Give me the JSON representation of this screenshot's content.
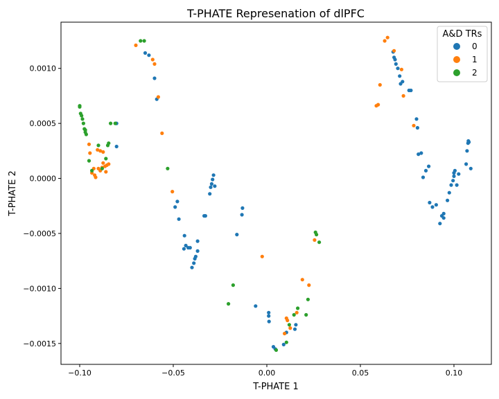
{
  "chart_data": {
    "type": "scatter",
    "title": "T-PHATE Represenation of dlPFC",
    "xlabel": "T-PHATE 1",
    "ylabel": "T-PHATE 2",
    "xlim": [
      -0.11,
      0.12
    ],
    "ylim": [
      -0.00169,
      0.00142
    ],
    "x_ticks": [
      -0.1,
      -0.05,
      0.0,
      0.05,
      0.1
    ],
    "x_tick_labels": [
      "−0.10",
      "−0.05",
      "0.00",
      "0.05",
      "0.10"
    ],
    "y_ticks": [
      -0.0015,
      -0.001,
      -0.0005,
      0.0,
      0.0005,
      0.001
    ],
    "y_tick_labels": [
      "−0.0015",
      "−0.0010",
      "−0.0005",
      "0.0000",
      "0.0005",
      "0.0010"
    ],
    "grid": false,
    "legend": {
      "title": "A&D TRs",
      "placement": "top-right"
    },
    "series": [
      {
        "name": "0",
        "color": "#1f77b4",
        "points": [
          [
            -0.0803,
            0.0005
          ],
          [
            -0.0803,
            0.00029
          ],
          [
            -0.065,
            0.00114
          ],
          [
            -0.063,
            0.00112
          ],
          [
            -0.06,
            0.00091
          ],
          [
            -0.0588,
            0.00072
          ],
          [
            -0.049,
            -0.00026
          ],
          [
            -0.0478,
            -0.00021
          ],
          [
            -0.047,
            -0.00037
          ],
          [
            -0.0443,
            -0.00064
          ],
          [
            -0.044,
            -0.00052
          ],
          [
            -0.0433,
            -0.00061
          ],
          [
            -0.042,
            -0.00063
          ],
          [
            -0.041,
            -0.00063
          ],
          [
            -0.04,
            -0.00081
          ],
          [
            -0.039,
            -0.00077
          ],
          [
            -0.0385,
            -0.00073
          ],
          [
            -0.038,
            -0.00071
          ],
          [
            -0.037,
            -0.00066
          ],
          [
            -0.037,
            -0.00057
          ],
          [
            -0.0335,
            -0.00034
          ],
          [
            -0.0328,
            -0.00034
          ],
          [
            -0.0305,
            -0.00014
          ],
          [
            -0.03,
            -8e-05
          ],
          [
            -0.0295,
            -5e-05
          ],
          [
            -0.029,
            -1e-05
          ],
          [
            -0.0285,
            3e-05
          ],
          [
            -0.0278,
            -7e-05
          ],
          [
            -0.016,
            -0.00051
          ],
          [
            -0.013,
            -0.00027
          ],
          [
            -0.0133,
            -0.00033
          ],
          [
            -0.006,
            -0.00116
          ],
          [
            0.001,
            -0.00122
          ],
          [
            0.001,
            -0.00125
          ],
          [
            0.0012,
            -0.0013
          ],
          [
            0.0035,
            -0.00153
          ],
          [
            0.0045,
            -0.00155
          ],
          [
            0.009,
            -0.00151
          ],
          [
            0.0105,
            -0.0014
          ],
          [
            0.015,
            -0.00137
          ],
          [
            0.0155,
            -0.00133
          ],
          [
            0.0675,
            0.00115
          ],
          [
            0.068,
            0.0011
          ],
          [
            0.0685,
            0.00108
          ],
          [
            0.069,
            0.00104
          ],
          [
            0.07,
            0.001
          ],
          [
            0.071,
            0.00093
          ],
          [
            0.0715,
            0.00086
          ],
          [
            0.0725,
            0.00088
          ],
          [
            0.076,
            0.0008
          ],
          [
            0.077,
            0.0008
          ],
          [
            0.08,
            0.00054
          ],
          [
            0.0805,
            0.00046
          ],
          [
            0.081,
            0.00022
          ],
          [
            0.0825,
            0.00023
          ],
          [
            0.0835,
            1e-05
          ],
          [
            0.085,
            7e-05
          ],
          [
            0.0865,
            0.00011
          ],
          [
            0.087,
            -0.00022
          ],
          [
            0.0885,
            -0.00026
          ],
          [
            0.0905,
            -0.00024
          ],
          [
            0.0925,
            -0.00041
          ],
          [
            0.0935,
            -0.00034
          ],
          [
            0.0945,
            -0.00036
          ],
          [
            0.0945,
            -0.00032
          ],
          [
            0.0965,
            -0.0002
          ],
          [
            0.0975,
            -0.00013
          ],
          [
            0.0985,
            -6e-05
          ],
          [
            0.0995,
            -2e-05
          ],
          [
            0.1,
            2e-05
          ],
          [
            0.1,
            5e-05
          ],
          [
            0.1005,
            7e-05
          ],
          [
            0.1015,
            -6e-05
          ],
          [
            0.1025,
            4e-05
          ],
          [
            0.1065,
            0.00013
          ],
          [
            0.107,
            0.00025
          ],
          [
            0.1075,
            0.00032
          ],
          [
            0.1077,
            0.00034
          ],
          [
            0.108,
            0.00033
          ],
          [
            0.109,
            9e-05
          ]
        ]
      },
      {
        "name": "1",
        "color": "#ff7f0e",
        "points": [
          [
            -0.0925,
            9e-05
          ],
          [
            -0.0935,
            5e-05
          ],
          [
            -0.092,
            3e-05
          ],
          [
            -0.0915,
            1e-05
          ],
          [
            -0.09,
            9e-05
          ],
          [
            -0.089,
            7e-05
          ],
          [
            -0.088,
            0.0001
          ],
          [
            -0.0875,
            0.00014
          ],
          [
            -0.0865,
            0.00011
          ],
          [
            -0.086,
            6e-05
          ],
          [
            -0.0855,
            0.00012
          ],
          [
            -0.0845,
            0.00013
          ],
          [
            -0.089,
            0.00025
          ],
          [
            -0.0875,
            0.00024
          ],
          [
            -0.0905,
            0.00026
          ],
          [
            -0.095,
            0.00031
          ],
          [
            -0.0945,
            0.00023
          ],
          [
            -0.07,
            0.00121
          ],
          [
            -0.061,
            0.00108
          ],
          [
            -0.06,
            0.00104
          ],
          [
            -0.058,
            0.00074
          ],
          [
            -0.056,
            0.00041
          ],
          [
            -0.0505,
            -0.00012
          ],
          [
            -0.0025,
            -0.00071
          ],
          [
            0.0095,
            -0.00141
          ],
          [
            0.0105,
            -0.00127
          ],
          [
            0.011,
            -0.00129
          ],
          [
            0.0125,
            -0.00136
          ],
          [
            0.016,
            -0.00122
          ],
          [
            0.019,
            -0.00092
          ],
          [
            0.0225,
            -0.00097
          ],
          [
            0.0255,
            -0.00056
          ],
          [
            0.0585,
            0.00066
          ],
          [
            0.0595,
            0.00067
          ],
          [
            0.0605,
            0.00085
          ],
          [
            0.063,
            0.00125
          ],
          [
            0.0645,
            0.00128
          ],
          [
            0.068,
            0.00116
          ],
          [
            0.072,
            0.00099
          ],
          [
            0.073,
            0.00075
          ],
          [
            0.0785,
            0.00048
          ]
        ]
      },
      {
        "name": "2",
        "color": "#2ca02c",
        "points": [
          [
            -0.1,
            0.00066
          ],
          [
            -0.1,
            0.00065
          ],
          [
            -0.0995,
            0.00059
          ],
          [
            -0.099,
            0.00057
          ],
          [
            -0.0985,
            0.00054
          ],
          [
            -0.098,
            0.0005
          ],
          [
            -0.0975,
            0.00045
          ],
          [
            -0.097,
            0.00044
          ],
          [
            -0.097,
            0.00042
          ],
          [
            -0.0965,
            0.0004
          ],
          [
            -0.095,
            0.00016
          ],
          [
            -0.0935,
            7e-05
          ],
          [
            -0.09,
            0.0003
          ],
          [
            -0.088,
            9e-05
          ],
          [
            -0.086,
            0.00018
          ],
          [
            -0.085,
            0.0003
          ],
          [
            -0.0845,
            0.00032
          ],
          [
            -0.0835,
            0.0005
          ],
          [
            -0.081,
            0.0005
          ],
          [
            -0.0675,
            0.00125
          ],
          [
            -0.0655,
            0.00125
          ],
          [
            -0.053,
            9e-05
          ],
          [
            -0.018,
            -0.00097
          ],
          [
            -0.0205,
            -0.00114
          ],
          [
            0.005,
            -0.00156
          ],
          [
            0.0105,
            -0.00149
          ],
          [
            0.012,
            -0.00133
          ],
          [
            0.0145,
            -0.00124
          ],
          [
            0.0165,
            -0.00118
          ],
          [
            0.021,
            -0.00124
          ],
          [
            0.022,
            -0.0011
          ],
          [
            0.026,
            -0.00049
          ],
          [
            0.0265,
            -0.00051
          ],
          [
            0.028,
            -0.00058
          ]
        ]
      }
    ]
  }
}
